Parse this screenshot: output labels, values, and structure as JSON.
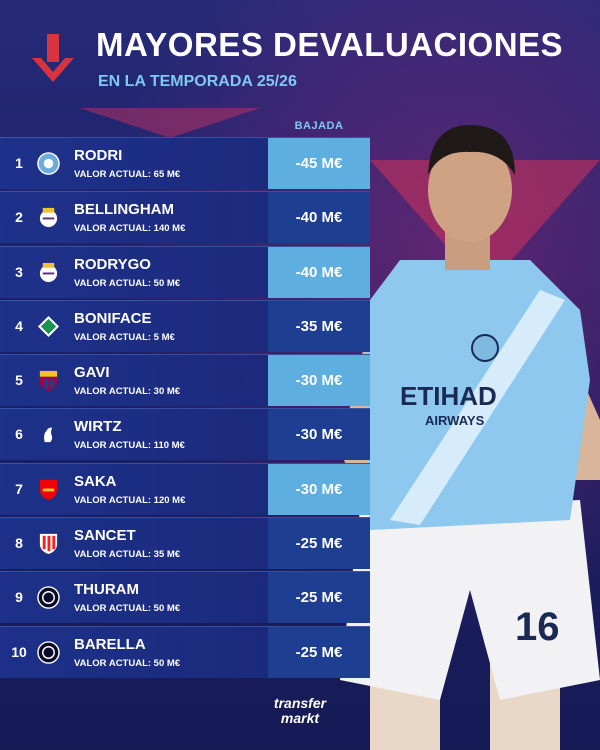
{
  "header": {
    "title": "MAYORES DEVALUACIONES",
    "subtitle": "EN LA TEMPORADA 25/26",
    "column_label": "BAJADA"
  },
  "colors": {
    "accent_red": "#d8343f",
    "subtitle_blue": "#7fc8f0",
    "cell_light": "#5eaee0",
    "cell_dark": "#1e3e92"
  },
  "rows": [
    {
      "rank": "1",
      "club_icon": "manchester-city-crest-icon",
      "name": "RODRI",
      "value": "VALOR ACTUAL: 65 M€",
      "drop": "-45 M€"
    },
    {
      "rank": "2",
      "club_icon": "real-madrid-crest-icon",
      "name": "BELLINGHAM",
      "value": "VALOR ACTUAL: 140 M€",
      "drop": "-40 M€"
    },
    {
      "rank": "3",
      "club_icon": "real-madrid-crest-icon",
      "name": "RODRYGO",
      "value": "VALOR ACTUAL: 50 M€",
      "drop": "-40 M€"
    },
    {
      "rank": "4",
      "club_icon": "werder-bremen-crest-icon",
      "name": "BONIFACE",
      "value": "VALOR ACTUAL: 5 M€",
      "drop": "-35 M€"
    },
    {
      "rank": "5",
      "club_icon": "barcelona-crest-icon",
      "name": "GAVI",
      "value": "VALOR ACTUAL: 30 M€",
      "drop": "-30 M€"
    },
    {
      "rank": "6",
      "club_icon": "liverpool-crest-icon",
      "name": "WIRTZ",
      "value": "VALOR ACTUAL: 110 M€",
      "drop": "-30 M€"
    },
    {
      "rank": "7",
      "club_icon": "arsenal-crest-icon",
      "name": "SAKA",
      "value": "VALOR ACTUAL: 120 M€",
      "drop": "-30 M€"
    },
    {
      "rank": "8",
      "club_icon": "athletic-bilbao-crest-icon",
      "name": "SANCET",
      "value": "VALOR ACTUAL: 35 M€",
      "drop": "-25 M€"
    },
    {
      "rank": "9",
      "club_icon": "inter-crest-icon",
      "name": "THURAM",
      "value": "VALOR ACTUAL: 50 M€",
      "drop": "-25 M€"
    },
    {
      "rank": "10",
      "club_icon": "inter-crest-icon",
      "name": "BARELLA",
      "value": "VALOR ACTUAL: 50 M€",
      "drop": "-25 M€"
    }
  ],
  "logo": {
    "line1": "transfer",
    "line2": "markt"
  }
}
